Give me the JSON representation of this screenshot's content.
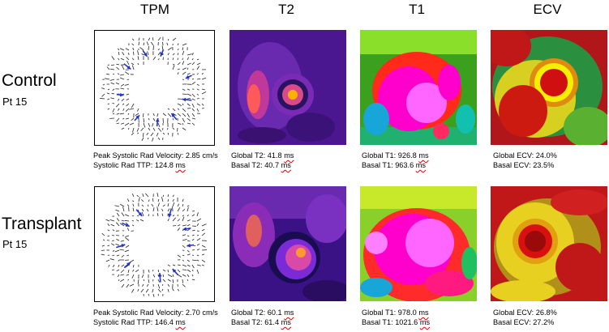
{
  "columns": [
    "TPM",
    "T2",
    "T1",
    "ECV"
  ],
  "rows": [
    {
      "title": "Control",
      "subtitle": "Pt 15",
      "tpm": {
        "line1_label": "Peak Systolic Rad Velocity:",
        "line1_value": "2.85",
        "line1_unit": "cm/s",
        "line2_label": "Systolic Rad TTP:",
        "line2_value": "124.8",
        "line2_unit": "ms"
      },
      "t2": {
        "line1": "Global  T2: 41.8",
        "line1_unit": "ms",
        "line2": "Basal  T2: 40.7",
        "line2_unit": "ms"
      },
      "t1": {
        "line1": "Global  T1: 926.8",
        "line1_unit": "ms",
        "line2": "Basal  T1: 963.6",
        "line2_unit": "ms"
      },
      "ecv": {
        "line1": "Global  ECV: 24.0%",
        "line2": "Basal  ECV: 23.5%"
      }
    },
    {
      "title": "Transplant",
      "subtitle": "Pt 15",
      "tpm": {
        "line1_label": "Peak Systolic Rad Velocity:",
        "line1_value": "2.70",
        "line1_unit": "cm/s",
        "line2_label": "Systolic Rad TTP:",
        "line2_value": "146.4",
        "line2_unit": "ms"
      },
      "t2": {
        "line1": "Global  T2: 60.1",
        "line1_unit": "ms",
        "line2": "Basal  T2: 61.4",
        "line2_unit": "ms"
      },
      "t1": {
        "line1": "Global  T1: 978.0",
        "line1_unit": "ms",
        "line2": "Basal  T1: 1021.6",
        "line2_unit": "ms"
      },
      "ecv": {
        "line1": "Global  ECV: 26.8%",
        "line2": "Basal  ECV: 27.2%"
      }
    }
  ]
}
